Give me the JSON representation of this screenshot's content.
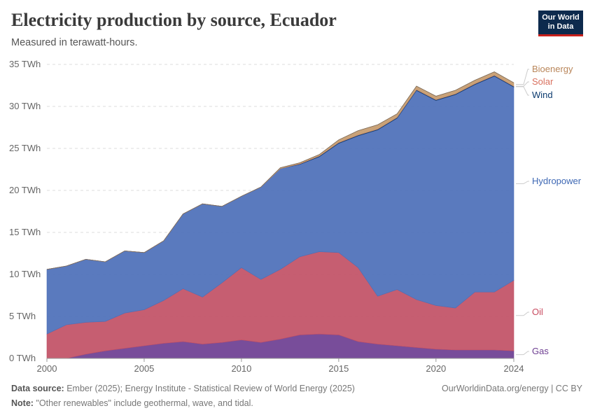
{
  "header": {
    "title": "Electricity production by source, Ecuador",
    "subtitle": "Measured in terawatt-hours.",
    "logo_line1": "Our World",
    "logo_line2": "in Data"
  },
  "footer": {
    "source_label": "Data source:",
    "source_text": "Ember (2025); Energy Institute - Statistical Review of World Energy (2025)",
    "note_label": "Note:",
    "note_text": "\"Other renewables\" include geothermal, wave, and tidal.",
    "credit": "OurWorldinData.org/energy | CC BY"
  },
  "chart_data": {
    "type": "area",
    "stacked": true,
    "title": "Electricity production by source, Ecuador",
    "subtitle": "Measured in terawatt-hours.",
    "unit": "TWh",
    "x": [
      2000,
      2001,
      2002,
      2003,
      2004,
      2005,
      2006,
      2007,
      2008,
      2009,
      2010,
      2011,
      2012,
      2013,
      2014,
      2015,
      2016,
      2017,
      2018,
      2019,
      2020,
      2021,
      2022,
      2023,
      2024
    ],
    "xticks": [
      "2000",
      "2005",
      "2010",
      "2015",
      "2020",
      "2024"
    ],
    "yticks": [
      "0 TWh",
      "5 TWh",
      "10 TWh",
      "15 TWh",
      "20 TWh",
      "25 TWh",
      "30 TWh",
      "35 TWh"
    ],
    "ylim": [
      0,
      35
    ],
    "grid": "horizontal dashed",
    "series": [
      {
        "name": "Gas",
        "color": "#6d3e91",
        "values": [
          0,
          0,
          0.5,
          0.9,
          1.2,
          1.5,
          1.8,
          2.0,
          1.7,
          1.9,
          2.2,
          1.9,
          2.3,
          2.8,
          2.9,
          2.8,
          2.0,
          1.7,
          1.5,
          1.3,
          1.1,
          1.0,
          1.0,
          1.0,
          0.9
        ]
      },
      {
        "name": "Oil",
        "color": "#c15065",
        "values": [
          2.9,
          4.0,
          3.8,
          3.5,
          4.2,
          4.3,
          5.1,
          6.3,
          5.6,
          7.1,
          8.6,
          7.5,
          8.3,
          9.3,
          9.8,
          9.8,
          8.8,
          5.7,
          6.7,
          5.7,
          5.2,
          5.0,
          6.9,
          6.9,
          8.4
        ]
      },
      {
        "name": "Hydropower",
        "color": "#4c6fb8",
        "values": [
          7.7,
          7.0,
          7.5,
          7.1,
          7.4,
          6.8,
          7.1,
          8.9,
          11.1,
          9.1,
          8.5,
          11.0,
          12.0,
          11.0,
          11.3,
          13.0,
          15.7,
          19.8,
          20.4,
          24.9,
          24.4,
          25.4,
          24.7,
          25.7,
          23.0
        ]
      },
      {
        "name": "Wind",
        "color": "#0b3a6e",
        "values": [
          0,
          0,
          0,
          0,
          0,
          0,
          0,
          0,
          0,
          0,
          0,
          0,
          0,
          0.05,
          0.08,
          0.08,
          0.08,
          0.08,
          0.08,
          0.08,
          0.08,
          0.08,
          0.08,
          0.08,
          0.08
        ]
      },
      {
        "name": "Solar",
        "color": "#e0836a",
        "values": [
          0,
          0,
          0,
          0,
          0,
          0,
          0,
          0,
          0,
          0,
          0,
          0,
          0,
          0.04,
          0.04,
          0.04,
          0.04,
          0.04,
          0.04,
          0.04,
          0.04,
          0.04,
          0.04,
          0.04,
          0.04
        ]
      },
      {
        "name": "Bioenergy",
        "color": "#c49a6c",
        "values": [
          0,
          0,
          0,
          0,
          0,
          0,
          0,
          0,
          0,
          0,
          0,
          0,
          0.1,
          0.1,
          0.15,
          0.3,
          0.5,
          0.5,
          0.4,
          0.4,
          0.4,
          0.4,
          0.4,
          0.4,
          0.4
        ]
      }
    ]
  }
}
